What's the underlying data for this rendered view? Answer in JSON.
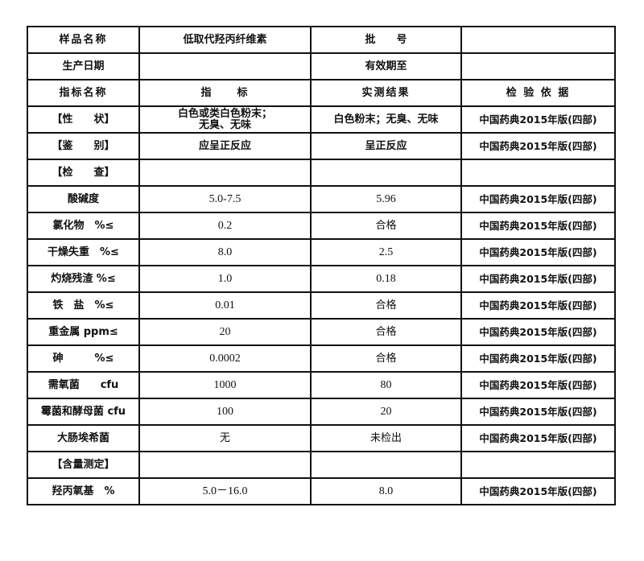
{
  "header": {
    "sample_name_label": "样品名称",
    "sample_name": "低取代羟丙纤维素",
    "batch_label": "批　　号",
    "batch_value": "",
    "production_date_label": "生产日期",
    "production_date": "",
    "expiry_label": "有效期至",
    "expiry_value": ""
  },
  "columns": [
    "指标名称",
    "指　　标",
    "实测结果",
    "检 验 依 据"
  ],
  "rows": [
    {
      "name": "【性　　状】",
      "spec": "白色或类白色粉末；\n无臭、无味",
      "result": "白色粉末；无臭、无味",
      "basis": "中国药典2015年版(四部)"
    },
    {
      "name": "【鉴　　别】",
      "spec": "应呈正反应",
      "result": "呈正反应",
      "basis": "中国药典2015年版(四部)"
    },
    {
      "name": "【检　　查】",
      "spec": "",
      "result": "",
      "basis": ""
    },
    {
      "name": "酸碱度",
      "spec": "5.0-7.5",
      "result": "5.96",
      "basis": "中国药典2015年版(四部)"
    },
    {
      "name": "氯化物　%≤",
      "spec": "0.2",
      "result": "合格",
      "basis": "中国药典2015年版(四部)"
    },
    {
      "name": "干燥失重　%≤",
      "spec": "8.0",
      "result": "2.5",
      "basis": "中国药典2015年版(四部)"
    },
    {
      "name": "灼烧残渣 %≤",
      "spec": "1.0",
      "result": "0.18",
      "basis": "中国药典2015年版(四部)"
    },
    {
      "name": "铁　盐　%≤",
      "spec": "0.01",
      "result": "合格",
      "basis": "中国药典2015年版(四部)"
    },
    {
      "name": "重金属 ppm≤",
      "spec": "20",
      "result": "合格",
      "basis": "中国药典2015年版(四部)"
    },
    {
      "name": "砷　　　%≤",
      "spec": "0.0002",
      "result": "合格",
      "basis": "中国药典2015年版(四部)"
    },
    {
      "name": "需氧菌　　cfu",
      "spec": "1000",
      "result": "80",
      "basis": "中国药典2015年版(四部)"
    },
    {
      "name": "霉菌和酵母菌 cfu",
      "spec": "100",
      "result": "20",
      "basis": "中国药典2015年版(四部)"
    },
    {
      "name": "大肠埃希菌",
      "spec": "无",
      "result": "未检出",
      "basis": "中国药典2015年版(四部)"
    },
    {
      "name": "【含量测定】",
      "spec": "",
      "result": "",
      "basis": ""
    },
    {
      "name": "羟丙氧基　%",
      "spec": "5.0－16.0",
      "result": "8.0",
      "basis": "中国药典2015年版(四部)"
    }
  ]
}
